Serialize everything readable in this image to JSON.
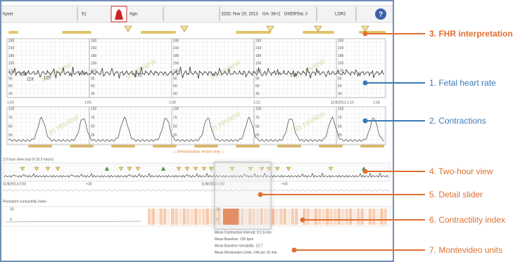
{
  "topbar": {
    "patient": "hyser",
    "room": "51",
    "age": "Age:",
    "edd": "EDD: Nov 20, 2013",
    "ga": "GA: 38+2",
    "dil": "Dil/Eff/Sta: //",
    "bed": "LDR2",
    "help": "?"
  },
  "fhr": {
    "ticks": [
      "240",
      "210",
      "180",
      "150",
      "120",
      "90",
      "60",
      "30"
    ],
    "baseline_labels": [
      "135",
      "119",
      "125",
      "128",
      "132",
      "131"
    ],
    "watermark": "in review"
  },
  "times": [
    "1:03",
    "1:06",
    "1:09",
    "1:12",
    "11/8/2013 1:15",
    "1:18"
  ],
  "contractions": {
    "ticks": [
      "100",
      "75",
      "50",
      "25"
    ]
  },
  "demo_notice": "— Demonstration version only —",
  "two_hour": {
    "title": "2.0 hour view (out of 10.3 hours)",
    "times": [
      "11/8/2013 0:00",
      "+30",
      "11/8/2013 1:00",
      "+30"
    ]
  },
  "contractility": {
    "title": "Persistent contractility index",
    "left_ticks": [
      "30",
      "0"
    ],
    "right_ticks": [
      "30",
      "0"
    ]
  },
  "stats": [
    "Mean Contraction Interval: 0:1.5 min",
    "Mean Baseline: 135 bpm",
    "Mean Baseline Variability: 12.7",
    "Mean Montevideo Units: 246 per 10 min"
  ],
  "callouts": [
    "3. FHR interpretation",
    "1. Fetal heart rate",
    "2. Contractions",
    "4. Two-hour view",
    "5. Detail slider",
    "6. Contractility index",
    "7. Montevideo units"
  ]
}
